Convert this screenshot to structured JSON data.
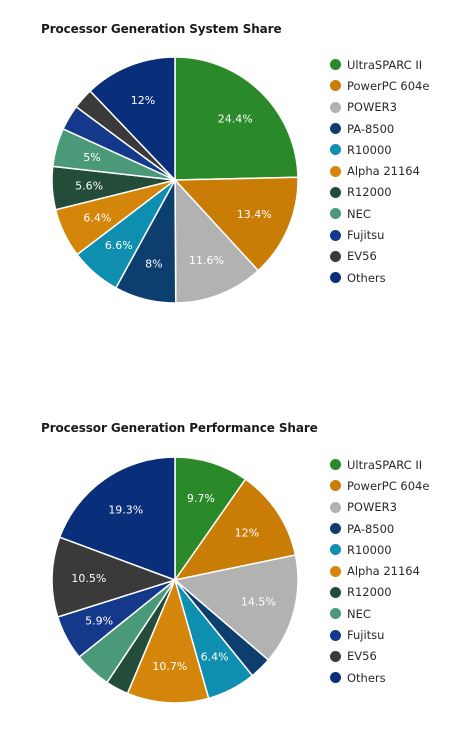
{
  "chart_data": [
    {
      "type": "pie",
      "title": "Processor Generation System Share",
      "legend_position": "right",
      "categories": [
        "UltraSPARC II",
        "PowerPC 604e",
        "POWER3",
        "PA-8500",
        "R10000",
        "Alpha 21164",
        "R12000",
        "NEC",
        "Fujitsu",
        "EV56",
        "Others"
      ],
      "values": [
        24.4,
        13.4,
        11.6,
        8,
        6.6,
        6.4,
        5.6,
        5,
        3.3,
        2.7,
        12
      ],
      "labels": [
        "24.4%",
        "13.4%",
        "11.6%",
        "8%",
        "6.6%",
        "6.4%",
        "5.6%",
        "5%",
        "",
        "",
        "12%"
      ],
      "colors": [
        "#2a8a2a",
        "#c97c06",
        "#b2b2b2",
        "#0c3f6e",
        "#0e8fb0",
        "#d4860a",
        "#234d3a",
        "#4a9a7a",
        "#14388a",
        "#3a3a3a",
        "#0a2f7a"
      ]
    },
    {
      "type": "pie",
      "title": "Processor Generation Performance Share",
      "legend_position": "right",
      "categories": [
        "UltraSPARC II",
        "PowerPC 604e",
        "POWER3",
        "PA-8500",
        "R10000",
        "Alpha 21164",
        "R12000",
        "NEC",
        "Fujitsu",
        "EV56",
        "Others"
      ],
      "values": [
        9.7,
        12,
        14.5,
        2.9,
        6.4,
        10.7,
        3,
        4.9,
        5.9,
        10.5,
        19.3
      ],
      "labels": [
        "9.7%",
        "12%",
        "14.5%",
        "",
        "6.4%",
        "10.7%",
        "",
        "",
        "5.9%",
        "10.5%",
        "19.3%"
      ],
      "colors": [
        "#2a8a2a",
        "#c97c06",
        "#b2b2b2",
        "#0c3f6e",
        "#0e8fb0",
        "#d4860a",
        "#234d3a",
        "#4a9a7a",
        "#14388a",
        "#3a3a3a",
        "#0a2f7a"
      ]
    }
  ]
}
